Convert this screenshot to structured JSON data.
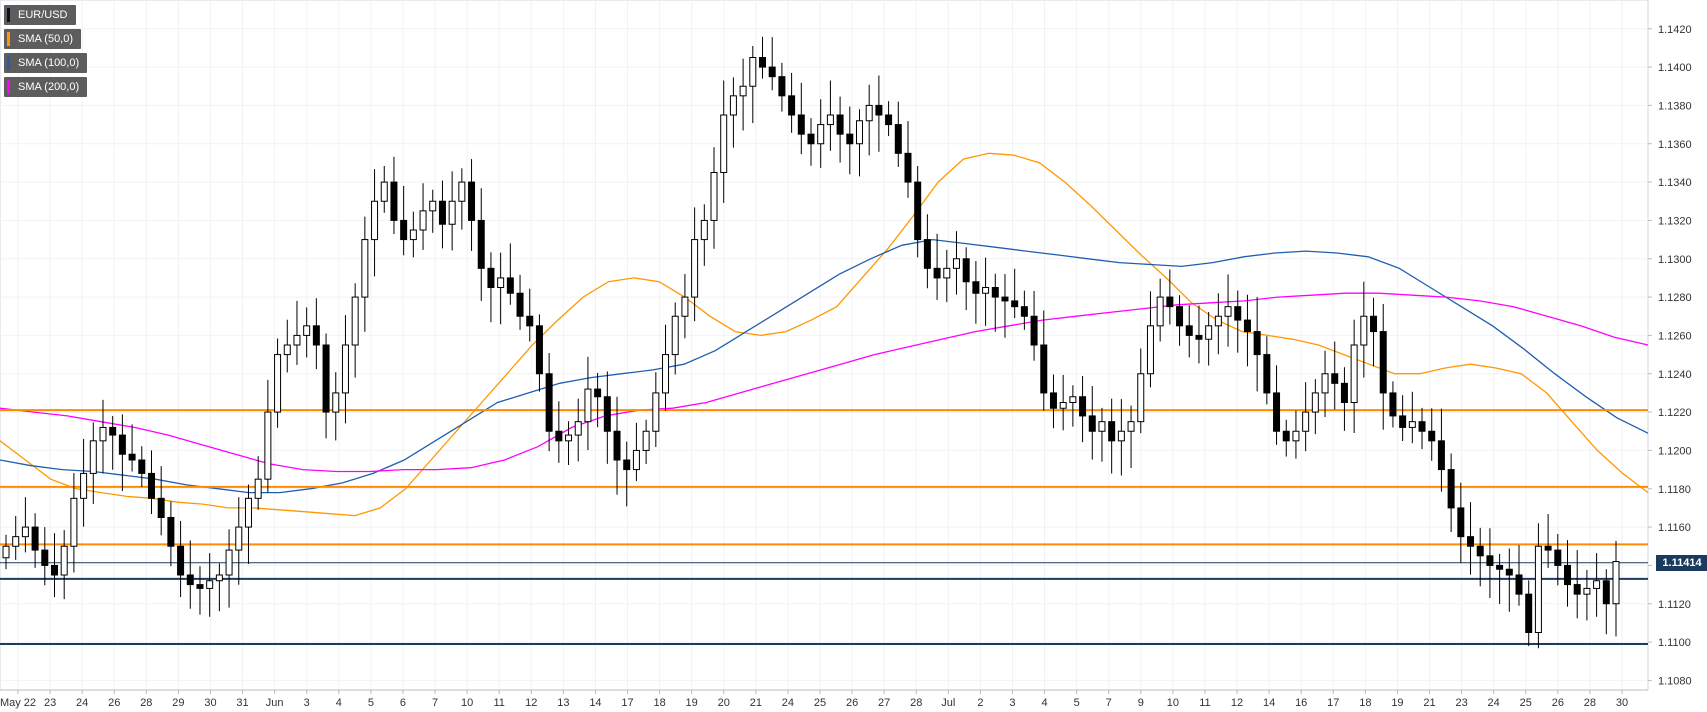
{
  "legend": {
    "items": [
      {
        "label": "EUR/USD",
        "color": "#111111"
      },
      {
        "label": "SMA (50,0)",
        "color": "#ff9800"
      },
      {
        "label": "SMA (100,0)",
        "color": "#1f5fb0"
      },
      {
        "label": "SMA (200,0)",
        "color": "#ff00ff"
      }
    ]
  },
  "last_price_label": "1.11414",
  "chart_data": {
    "type": "candlestick",
    "symbol": "EUR/USD",
    "ylim": [
      1.1075,
      1.1435
    ],
    "y_ticks": [
      1.108,
      1.11,
      1.112,
      1.114,
      1.116,
      1.118,
      1.12,
      1.122,
      1.124,
      1.126,
      1.128,
      1.13,
      1.132,
      1.134,
      1.136,
      1.138,
      1.14,
      1.142
    ],
    "x_ticks": [
      "May 22",
      "23",
      "24",
      "26",
      "28",
      "29",
      "30",
      "31",
      "Jun",
      "3",
      "4",
      "5",
      "6",
      "7",
      "10",
      "11",
      "12",
      "13",
      "14",
      "17",
      "18",
      "19",
      "20",
      "21",
      "24",
      "25",
      "26",
      "27",
      "28",
      "Jul",
      "2",
      "3",
      "4",
      "5",
      "7",
      "9",
      "10",
      "11",
      "12",
      "14",
      "16",
      "17",
      "18",
      "19",
      "21",
      "23",
      "24",
      "25",
      "26",
      "28",
      "30"
    ],
    "horizontal_levels": [
      {
        "value": 1.1221,
        "color": "#ff8c00"
      },
      {
        "value": 1.1181,
        "color": "#ff8c00"
      },
      {
        "value": 1.1151,
        "color": "#ff8c00"
      },
      {
        "value": 1.1133,
        "color": "#1c3a5e"
      },
      {
        "value": 1.1099,
        "color": "#1c3a5e"
      }
    ],
    "last_price": 1.11414,
    "closes": [
      1.115,
      1.1155,
      1.116,
      1.1148,
      1.114,
      1.1135,
      1.115,
      1.1175,
      1.1188,
      1.1205,
      1.1212,
      1.1208,
      1.1198,
      1.1195,
      1.1188,
      1.1175,
      1.1165,
      1.115,
      1.1135,
      1.113,
      1.1128,
      1.1132,
      1.1135,
      1.1148,
      1.116,
      1.1175,
      1.1185,
      1.122,
      1.125,
      1.1255,
      1.126,
      1.1265,
      1.1255,
      1.122,
      1.123,
      1.1255,
      1.128,
      1.131,
      1.133,
      1.134,
      1.132,
      1.131,
      1.1315,
      1.1325,
      1.133,
      1.1318,
      1.133,
      1.134,
      1.132,
      1.1295,
      1.1285,
      1.129,
      1.1282,
      1.127,
      1.1265,
      1.124,
      1.121,
      1.1205,
      1.1208,
      1.1215,
      1.1232,
      1.1228,
      1.121,
      1.1195,
      1.119,
      1.12,
      1.121,
      1.123,
      1.125,
      1.127,
      1.128,
      1.131,
      1.132,
      1.1345,
      1.1375,
      1.1385,
      1.139,
      1.1405,
      1.14,
      1.1395,
      1.1385,
      1.1375,
      1.1365,
      1.136,
      1.137,
      1.1375,
      1.1365,
      1.136,
      1.1372,
      1.138,
      1.1375,
      1.137,
      1.1355,
      1.134,
      1.131,
      1.1295,
      1.129,
      1.1295,
      1.13,
      1.1288,
      1.1282,
      1.1285,
      1.128,
      1.1278,
      1.1275,
      1.127,
      1.1255,
      1.123,
      1.1222,
      1.1225,
      1.1228,
      1.1218,
      1.121,
      1.1215,
      1.1205,
      1.121,
      1.1215,
      1.124,
      1.1265,
      1.128,
      1.1275,
      1.1265,
      1.126,
      1.1258,
      1.1265,
      1.127,
      1.1275,
      1.1268,
      1.1262,
      1.125,
      1.123,
      1.121,
      1.1205,
      1.121,
      1.122,
      1.123,
      1.124,
      1.1235,
      1.1225,
      1.1255,
      1.127,
      1.1262,
      1.123,
      1.1218,
      1.1212,
      1.1215,
      1.121,
      1.1205,
      1.119,
      1.117,
      1.1155,
      1.115,
      1.1145,
      1.114,
      1.1138,
      1.1135,
      1.1125,
      1.1105,
      1.115,
      1.1148,
      1.114,
      1.113,
      1.1125,
      1.1128,
      1.1132,
      1.112,
      1.1142
    ],
    "series": [
      {
        "name": "SMA (50,0)",
        "color": "#ff9800",
        "values": [
          1.1205,
          1.1195,
          1.1185,
          1.118,
          1.1178,
          1.1176,
          1.1175,
          1.1173,
          1.1172,
          1.117,
          1.117,
          1.1169,
          1.1168,
          1.1167,
          1.1166,
          1.117,
          1.118,
          1.1195,
          1.121,
          1.1225,
          1.124,
          1.1255,
          1.1268,
          1.128,
          1.1288,
          1.129,
          1.1288,
          1.128,
          1.127,
          1.1262,
          1.126,
          1.1262,
          1.1268,
          1.1275,
          1.129,
          1.1305,
          1.1322,
          1.134,
          1.1352,
          1.1355,
          1.1354,
          1.135,
          1.134,
          1.1328,
          1.1315,
          1.1302,
          1.129,
          1.1277,
          1.1268,
          1.1262,
          1.126,
          1.1258,
          1.1255,
          1.125,
          1.1245,
          1.124,
          1.124,
          1.1243,
          1.1245,
          1.1243,
          1.124,
          1.123,
          1.1215,
          1.12,
          1.1188,
          1.1178
        ]
      },
      {
        "name": "SMA (100,0)",
        "color": "#1f5fb0",
        "values": [
          1.1195,
          1.1192,
          1.119,
          1.1189,
          1.1187,
          1.1185,
          1.1182,
          1.118,
          1.1178,
          1.1178,
          1.118,
          1.1183,
          1.1188,
          1.1195,
          1.1205,
          1.1215,
          1.1225,
          1.123,
          1.1235,
          1.1238,
          1.124,
          1.1242,
          1.1245,
          1.1252,
          1.1262,
          1.1272,
          1.1282,
          1.1292,
          1.13,
          1.1307,
          1.131,
          1.1308,
          1.1306,
          1.1304,
          1.1302,
          1.13,
          1.1298,
          1.1297,
          1.1296,
          1.1298,
          1.1301,
          1.1303,
          1.1304,
          1.1303,
          1.1301,
          1.1295,
          1.1285,
          1.1275,
          1.1265,
          1.1253,
          1.124,
          1.1228,
          1.1217,
          1.1209
        ]
      },
      {
        "name": "SMA (200,0)",
        "color": "#ff00ff",
        "values": [
          1.1222,
          1.122,
          1.1218,
          1.1215,
          1.1212,
          1.1208,
          1.1203,
          1.1198,
          1.1193,
          1.119,
          1.1189,
          1.1189,
          1.119,
          1.119,
          1.1191,
          1.1195,
          1.1202,
          1.1212,
          1.1218,
          1.1221,
          1.1222,
          1.1225,
          1.123,
          1.1235,
          1.124,
          1.1245,
          1.125,
          1.1254,
          1.1258,
          1.1262,
          1.1265,
          1.1268,
          1.127,
          1.1272,
          1.1274,
          1.1276,
          1.1277,
          1.1278,
          1.128,
          1.1281,
          1.1282,
          1.1282,
          1.1281,
          1.128,
          1.1278,
          1.1275,
          1.127,
          1.1265,
          1.1259,
          1.1255
        ]
      }
    ]
  }
}
